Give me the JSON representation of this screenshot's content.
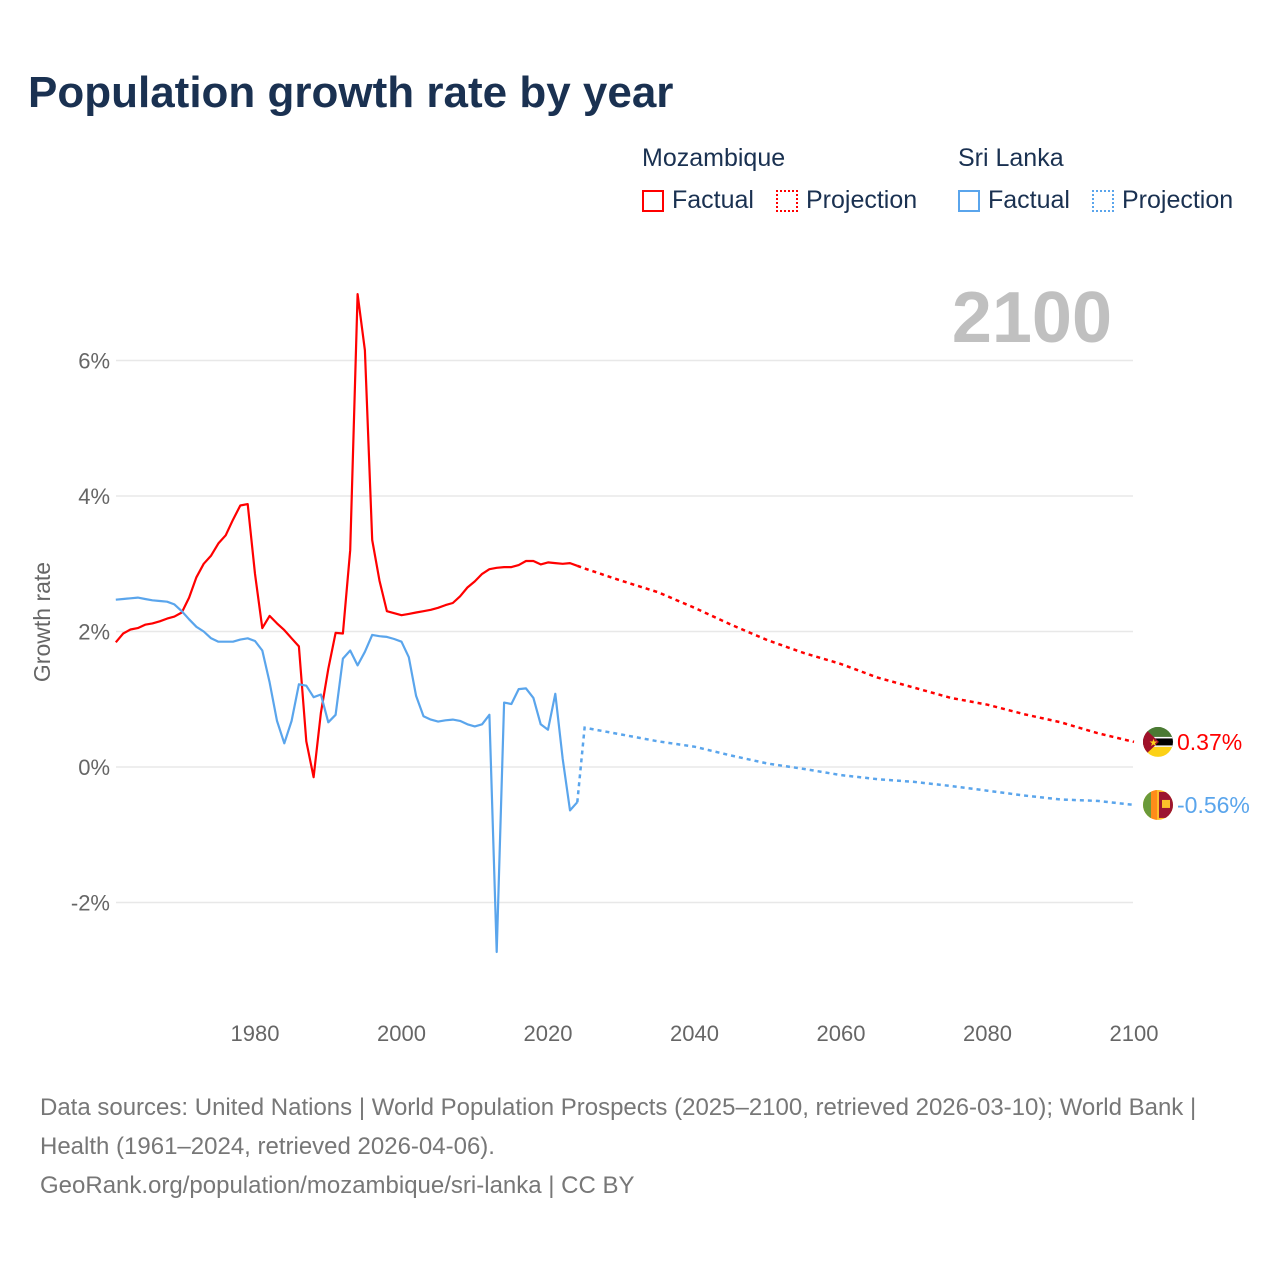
{
  "title": "Population growth rate by year",
  "legend": {
    "groups": [
      {
        "name": "Mozambique",
        "factual": "Factual",
        "projection": "Projection",
        "color": "#ff0000"
      },
      {
        "name": "Sri Lanka",
        "factual": "Factual",
        "projection": "Projection",
        "color": "#5aa5ec"
      }
    ]
  },
  "year_watermark": "2100",
  "footer": {
    "sources": "Data sources: United Nations | World Population Prospects (2025–2100, retrieved 2026-03-10); World Bank | Health (1961–2024, retrieved 2026-04-06).",
    "credit": "GeoRank.org/population/mozambique/sri-lanka | CC BY"
  },
  "chart_data": {
    "type": "line",
    "title": "Population growth rate by year",
    "xlabel": "",
    "ylabel": "Growth rate",
    "xlim": [
      1961,
      2100
    ],
    "ylim": [
      -3.5,
      7.2
    ],
    "xticks": [
      "1980",
      "2000",
      "2020",
      "2040",
      "2060",
      "2080",
      "2100"
    ],
    "xtick_values": [
      1980,
      2000,
      2020,
      2040,
      2060,
      2080,
      2100
    ],
    "yticks": [
      "6%",
      "4%",
      "2%",
      "0%",
      "-2%"
    ],
    "ytick_values": [
      6,
      4,
      2,
      0,
      -2
    ],
    "grid": true,
    "series": [
      {
        "name": "Mozambique",
        "color": "#ff0000",
        "end_label": "0.37%",
        "flag": "mozambique-flag",
        "factual": {
          "x": [
            1961,
            1962,
            1963,
            1964,
            1965,
            1966,
            1967,
            1968,
            1969,
            1970,
            1971,
            1972,
            1973,
            1974,
            1975,
            1976,
            1977,
            1978,
            1979,
            1980,
            1981,
            1982,
            1983,
            1984,
            1985,
            1986,
            1987,
            1988,
            1989,
            1990,
            1991,
            1992,
            1993,
            1994,
            1995,
            1996,
            1997,
            1998,
            1999,
            2000,
            2001,
            2002,
            2003,
            2004,
            2005,
            2006,
            2007,
            2008,
            2009,
            2010,
            2011,
            2012,
            2013,
            2014,
            2015,
            2016,
            2017,
            2018,
            2019,
            2020,
            2021,
            2022,
            2023,
            2024
          ],
          "y": [
            1.84,
            1.97,
            2.03,
            2.05,
            2.1,
            2.12,
            2.15,
            2.19,
            2.22,
            2.28,
            2.5,
            2.8,
            3.0,
            3.12,
            3.3,
            3.42,
            3.65,
            3.86,
            3.88,
            2.85,
            2.05,
            2.23,
            2.12,
            2.02,
            1.9,
            1.78,
            0.38,
            -0.15,
            0.8,
            1.45,
            1.98,
            1.97,
            3.2,
            6.98,
            6.15,
            3.35,
            2.75,
            2.3,
            2.27,
            2.24,
            2.26,
            2.28,
            2.3,
            2.32,
            2.35,
            2.39,
            2.42,
            2.52,
            2.65,
            2.74,
            2.85,
            2.92,
            2.94,
            2.95,
            2.95,
            2.98,
            3.04,
            3.04,
            2.99,
            3.02,
            3.01,
            3.0,
            3.01,
            2.97
          ]
        },
        "projection": {
          "x": [
            2024,
            2025,
            2030,
            2035,
            2040,
            2045,
            2050,
            2055,
            2060,
            2065,
            2070,
            2075,
            2080,
            2085,
            2090,
            2095,
            2100
          ],
          "y": [
            2.97,
            2.93,
            2.75,
            2.58,
            2.35,
            2.1,
            1.87,
            1.68,
            1.52,
            1.32,
            1.17,
            1.02,
            0.92,
            0.78,
            0.66,
            0.5,
            0.37
          ]
        }
      },
      {
        "name": "Sri Lanka",
        "color": "#5aa5ec",
        "end_label": "-0.56%",
        "flag": "sri-lanka-flag",
        "factual": {
          "x": [
            1961,
            1962,
            1963,
            1964,
            1965,
            1966,
            1967,
            1968,
            1969,
            1970,
            1971,
            1972,
            1973,
            1974,
            1975,
            1976,
            1977,
            1978,
            1979,
            1980,
            1981,
            1982,
            1983,
            1984,
            1985,
            1986,
            1987,
            1988,
            1989,
            1990,
            1991,
            1992,
            1993,
            1994,
            1995,
            1996,
            1997,
            1998,
            1999,
            2000,
            2001,
            2002,
            2003,
            2004,
            2005,
            2006,
            2007,
            2008,
            2009,
            2010,
            2011,
            2012,
            2013,
            2014,
            2015,
            2016,
            2017,
            2018,
            2019,
            2020,
            2021,
            2022,
            2023,
            2024
          ],
          "y": [
            2.47,
            2.48,
            2.49,
            2.5,
            2.48,
            2.46,
            2.45,
            2.44,
            2.4,
            2.3,
            2.18,
            2.07,
            2.0,
            1.9,
            1.85,
            1.85,
            1.85,
            1.88,
            1.9,
            1.86,
            1.72,
            1.25,
            0.68,
            0.35,
            0.68,
            1.22,
            1.2,
            1.03,
            1.07,
            0.66,
            0.77,
            1.6,
            1.72,
            1.5,
            1.7,
            1.95,
            1.93,
            1.92,
            1.89,
            1.85,
            1.62,
            1.05,
            0.75,
            0.7,
            0.67,
            0.69,
            0.7,
            0.68,
            0.63,
            0.6,
            0.63,
            0.77,
            -2.73,
            0.95,
            0.93,
            1.15,
            1.16,
            1.02,
            0.63,
            0.55,
            1.08,
            0.12,
            -0.64,
            -0.52
          ]
        },
        "projection": {
          "x": [
            2024,
            2025,
            2030,
            2035,
            2040,
            2045,
            2050,
            2055,
            2060,
            2065,
            2070,
            2075,
            2080,
            2085,
            2090,
            2095,
            2100
          ],
          "y": [
            -0.52,
            0.58,
            0.48,
            0.38,
            0.3,
            0.17,
            0.05,
            -0.03,
            -0.12,
            -0.18,
            -0.22,
            -0.28,
            -0.35,
            -0.42,
            -0.48,
            -0.5,
            -0.56
          ]
        }
      }
    ]
  }
}
